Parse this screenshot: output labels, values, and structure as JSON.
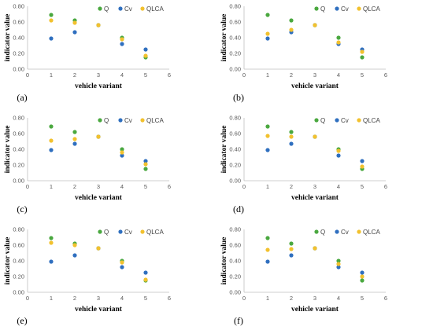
{
  "chart_data": [
    {
      "type": "scatter",
      "panel_label": "(a)",
      "xlabel": "vehicle variant",
      "ylabel": "indicator value",
      "xlim": [
        0,
        6
      ],
      "ylim": [
        0,
        0.8
      ],
      "x_ticks": [
        "0",
        "1",
        "2",
        "3",
        "4",
        "5",
        "6"
      ],
      "y_ticks": [
        "0.00",
        "0.20",
        "0.40",
        "0.60",
        "0.80"
      ],
      "legend_position": "top-right",
      "x": [
        1,
        2,
        3,
        4,
        5
      ],
      "series": [
        {
          "name": "Q",
          "color": "#4aa83f",
          "values": [
            0.69,
            0.62,
            0.56,
            0.4,
            0.15
          ]
        },
        {
          "name": "Cv",
          "color": "#2f6fbf",
          "values": [
            0.39,
            0.47,
            0.56,
            0.32,
            0.25
          ]
        },
        {
          "name": "QLCA",
          "color": "#f2c12e",
          "values": [
            0.62,
            0.59,
            0.56,
            0.38,
            0.17
          ]
        }
      ]
    },
    {
      "type": "scatter",
      "panel_label": "(b)",
      "xlabel": "vehicle variant",
      "ylabel": "indicator value",
      "xlim": [
        0,
        6
      ],
      "ylim": [
        0,
        0.8
      ],
      "x_ticks": [
        "0",
        "1",
        "2",
        "3",
        "4",
        "5",
        "6"
      ],
      "y_ticks": [
        "0.00",
        "0.20",
        "0.40",
        "0.60",
        "0.80"
      ],
      "legend_position": "top-right",
      "x": [
        1,
        2,
        3,
        4,
        5
      ],
      "series": [
        {
          "name": "Q",
          "color": "#4aa83f",
          "values": [
            0.69,
            0.62,
            0.56,
            0.4,
            0.15
          ]
        },
        {
          "name": "Cv",
          "color": "#2f6fbf",
          "values": [
            0.39,
            0.47,
            0.56,
            0.32,
            0.25
          ]
        },
        {
          "name": "QLCA",
          "color": "#f2c12e",
          "values": [
            0.45,
            0.5,
            0.56,
            0.34,
            0.22
          ]
        }
      ]
    },
    {
      "type": "scatter",
      "panel_label": "(c)",
      "xlabel": "vehicle variant",
      "ylabel": "indicator value",
      "xlim": [
        0,
        6
      ],
      "ylim": [
        0,
        0.8
      ],
      "x_ticks": [
        "0",
        "1",
        "2",
        "3",
        "4",
        "5",
        "6"
      ],
      "y_ticks": [
        "0.00",
        "0.20",
        "0.40",
        "0.60",
        "0.80"
      ],
      "legend_position": "top-right",
      "x": [
        1,
        2,
        3,
        4,
        5
      ],
      "series": [
        {
          "name": "Q",
          "color": "#4aa83f",
          "values": [
            0.69,
            0.62,
            0.56,
            0.4,
            0.15
          ]
        },
        {
          "name": "Cv",
          "color": "#2f6fbf",
          "values": [
            0.39,
            0.47,
            0.56,
            0.32,
            0.25
          ]
        },
        {
          "name": "QLCA",
          "color": "#f2c12e",
          "values": [
            0.51,
            0.53,
            0.56,
            0.36,
            0.21
          ]
        }
      ]
    },
    {
      "type": "scatter",
      "panel_label": "(d)",
      "xlabel": "vehicle variant",
      "ylabel": "indicator value",
      "xlim": [
        0,
        6
      ],
      "ylim": [
        0,
        0.8
      ],
      "x_ticks": [
        "0",
        "1",
        "2",
        "3",
        "4",
        "5",
        "6"
      ],
      "y_ticks": [
        "0.00",
        "0.20",
        "0.40",
        "0.60",
        "0.80"
      ],
      "legend_position": "top-right",
      "x": [
        1,
        2,
        3,
        4,
        5
      ],
      "series": [
        {
          "name": "Q",
          "color": "#4aa83f",
          "values": [
            0.69,
            0.62,
            0.56,
            0.4,
            0.15
          ]
        },
        {
          "name": "Cv",
          "color": "#2f6fbf",
          "values": [
            0.39,
            0.47,
            0.56,
            0.32,
            0.25
          ]
        },
        {
          "name": "QLCA",
          "color": "#f2c12e",
          "values": [
            0.57,
            0.56,
            0.56,
            0.38,
            0.18
          ]
        }
      ]
    },
    {
      "type": "scatter",
      "panel_label": "(e)",
      "xlabel": "vehicle variant",
      "ylabel": "indicator value",
      "xlim": [
        0,
        6
      ],
      "ylim": [
        0,
        0.8
      ],
      "x_ticks": [
        "0",
        "1",
        "2",
        "3",
        "4",
        "5",
        "6"
      ],
      "y_ticks": [
        "0.00",
        "0.20",
        "0.40",
        "0.60",
        "0.80"
      ],
      "legend_position": "top-right",
      "x": [
        1,
        2,
        3,
        4,
        5
      ],
      "series": [
        {
          "name": "Q",
          "color": "#4aa83f",
          "values": [
            0.69,
            0.62,
            0.56,
            0.4,
            0.15
          ]
        },
        {
          "name": "Cv",
          "color": "#2f6fbf",
          "values": [
            0.39,
            0.47,
            0.56,
            0.32,
            0.25
          ]
        },
        {
          "name": "QLCA",
          "color": "#f2c12e",
          "values": [
            0.63,
            0.6,
            0.56,
            0.38,
            0.16
          ]
        }
      ]
    },
    {
      "type": "scatter",
      "panel_label": "(f)",
      "xlabel": "vehicle variant",
      "ylabel": "indicator value",
      "xlim": [
        0,
        6
      ],
      "ylim": [
        0,
        0.8
      ],
      "x_ticks": [
        "0",
        "1",
        "2",
        "3",
        "4",
        "5",
        "6"
      ],
      "y_ticks": [
        "0.00",
        "0.20",
        "0.40",
        "0.60",
        "0.80"
      ],
      "legend_position": "top-right",
      "x": [
        1,
        2,
        3,
        4,
        5
      ],
      "series": [
        {
          "name": "Q",
          "color": "#4aa83f",
          "values": [
            0.69,
            0.62,
            0.56,
            0.4,
            0.15
          ]
        },
        {
          "name": "Cv",
          "color": "#2f6fbf",
          "values": [
            0.39,
            0.47,
            0.56,
            0.32,
            0.25
          ]
        },
        {
          "name": "QLCA",
          "color": "#f2c12e",
          "values": [
            0.54,
            0.55,
            0.56,
            0.36,
            0.2
          ]
        }
      ]
    }
  ]
}
